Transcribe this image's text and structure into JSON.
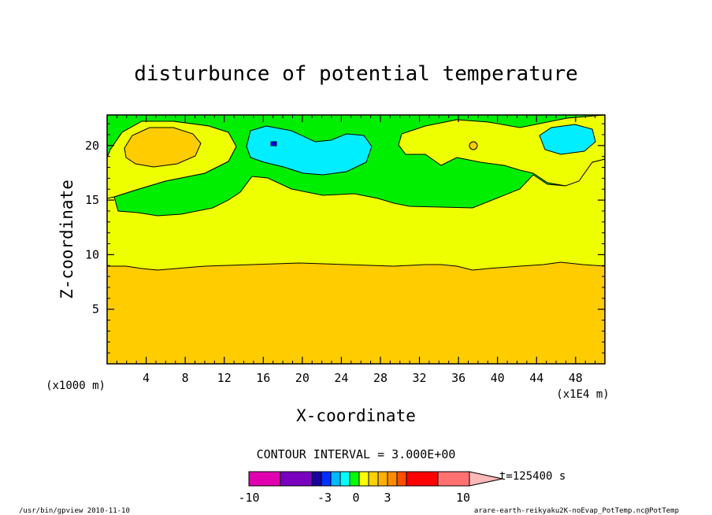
{
  "chart_data": {
    "type": "contour",
    "title": "disturbunce of potential temperature",
    "xlabel": "X-coordinate",
    "ylabel": "Z-coordinate",
    "x_unit_left": "(x1000 m)",
    "x_unit_right": "(x1E4 m)",
    "xlim": [
      0,
      51
    ],
    "ylim": [
      0,
      22.8
    ],
    "x_ticks": [
      4,
      8,
      12,
      16,
      20,
      24,
      28,
      32,
      36,
      40,
      44,
      48
    ],
    "y_ticks": [
      5,
      10,
      15,
      20
    ],
    "contour_interval_label": "CONTOUR INTERVAL = 3.000E+00",
    "time_label": "t=125400 s",
    "colorbar": {
      "labels": [
        "-10",
        "-3",
        "0",
        "3",
        "10"
      ],
      "colors": [
        "#e000b0",
        "#7a00c0",
        "#1a00a0",
        "#0030ff",
        "#00b8ff",
        "#00ffff",
        "#00ff00",
        "#ffff00",
        "#ffd000",
        "#ffb000",
        "#ff8c00",
        "#ff5000",
        "#ff0000",
        "#ff7070",
        "#ffb8b8"
      ]
    },
    "regions": [
      {
        "name": "orange",
        "color": "#ffcc00",
        "level": "3"
      },
      {
        "name": "yellow",
        "color": "#eeff00",
        "level": "0"
      },
      {
        "name": "green",
        "color": "#00ee00",
        "level": "-3"
      },
      {
        "name": "cyan",
        "color": "#00eeff",
        "level": "-6"
      },
      {
        "name": "blue",
        "color": "#0000ff",
        "level": "-10"
      }
    ]
  },
  "footer": {
    "left": "/usr/bin/gpview  2010-11-10",
    "right": "arare-earth-reikyaku2K-noEvap_PotTemp.nc@PotTemp"
  }
}
